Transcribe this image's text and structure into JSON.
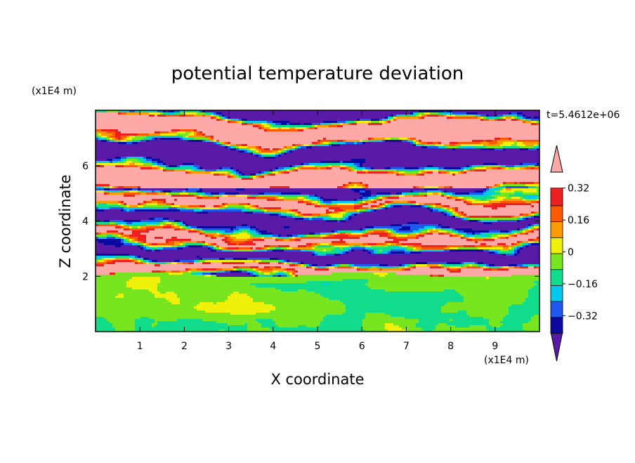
{
  "chart_data": {
    "type": "heatmap",
    "title": "potential temperature deviation",
    "xlabel": "X coordinate",
    "ylabel": "Z coordinate",
    "x_unit": "(x1E4 m)",
    "z_unit": "(x1E4 m)",
    "time_label": "t=5.4612e+06",
    "xlim": [
      0,
      10
    ],
    "zlim": [
      0,
      8
    ],
    "x_ticks": [
      "1",
      "2",
      "3",
      "4",
      "5",
      "6",
      "7",
      "8",
      "9"
    ],
    "z_ticks": [
      "2",
      "4",
      "6"
    ],
    "colorbar": {
      "levels": [
        -0.4,
        -0.32,
        -0.24,
        -0.16,
        -0.08,
        0,
        0.08,
        0.16,
        0.24,
        0.32,
        0.4
      ],
      "labels": [
        "0.32",
        "0.16",
        "0",
        "−0.16",
        "−0.32"
      ],
      "label_values": [
        0.32,
        0.16,
        0,
        -0.16,
        -0.32
      ],
      "colors": [
        "#5a1aa8",
        "#0a0aa0",
        "#1e5aee",
        "#00c8ee",
        "#10dc8c",
        "#78e61e",
        "#f0f00a",
        "#ff9b00",
        "#ff5a00",
        "#ee2020",
        "#ffa8a8"
      ],
      "extend": "both"
    },
    "description_regions": [
      {
        "z_range": [
          0,
          2.1
        ],
        "dominant": [
          0,
          0.08
        ],
        "secondary": [
          -0.08,
          0
        ]
      },
      {
        "z_range": [
          2.1,
          5.2
        ],
        "dominant": "mixed layered bands across all levels"
      },
      {
        "z_range": [
          5.2,
          8
        ],
        "dominant": "alternating bands of > 0.4 and < -0.4"
      }
    ]
  }
}
